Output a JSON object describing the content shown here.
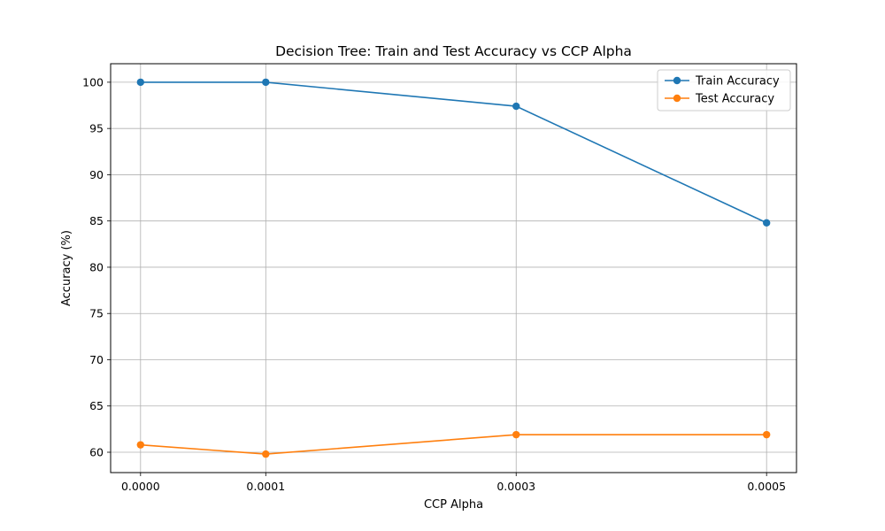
{
  "chart_data": {
    "type": "line",
    "title": "Decision Tree: Train and Test Accuracy vs CCP Alpha",
    "xlabel": "CCP Alpha",
    "ylabel": "Accuracy (%)",
    "x": [
      0.0,
      0.0001,
      0.0003,
      0.0005
    ],
    "x_tick_labels": [
      "0.0000",
      "0.0001",
      "0.0003",
      "0.0005"
    ],
    "y_ticks": [
      60,
      65,
      70,
      75,
      80,
      85,
      90,
      95,
      100
    ],
    "y_tick_labels": [
      "60",
      "65",
      "70",
      "75",
      "80",
      "85",
      "90",
      "95",
      "100"
    ],
    "ylim": [
      57.8,
      102.0
    ],
    "xlim": [
      -2.39e-05,
      0.0005239
    ],
    "grid": true,
    "legend_position": "top-right",
    "series": [
      {
        "name": "Train Accuracy",
        "color": "#1f77b4",
        "values": [
          100.0,
          100.0,
          97.4,
          84.8
        ]
      },
      {
        "name": "Test Accuracy",
        "color": "#ff7f0e",
        "values": [
          60.8,
          59.8,
          61.9,
          61.9
        ]
      }
    ]
  }
}
